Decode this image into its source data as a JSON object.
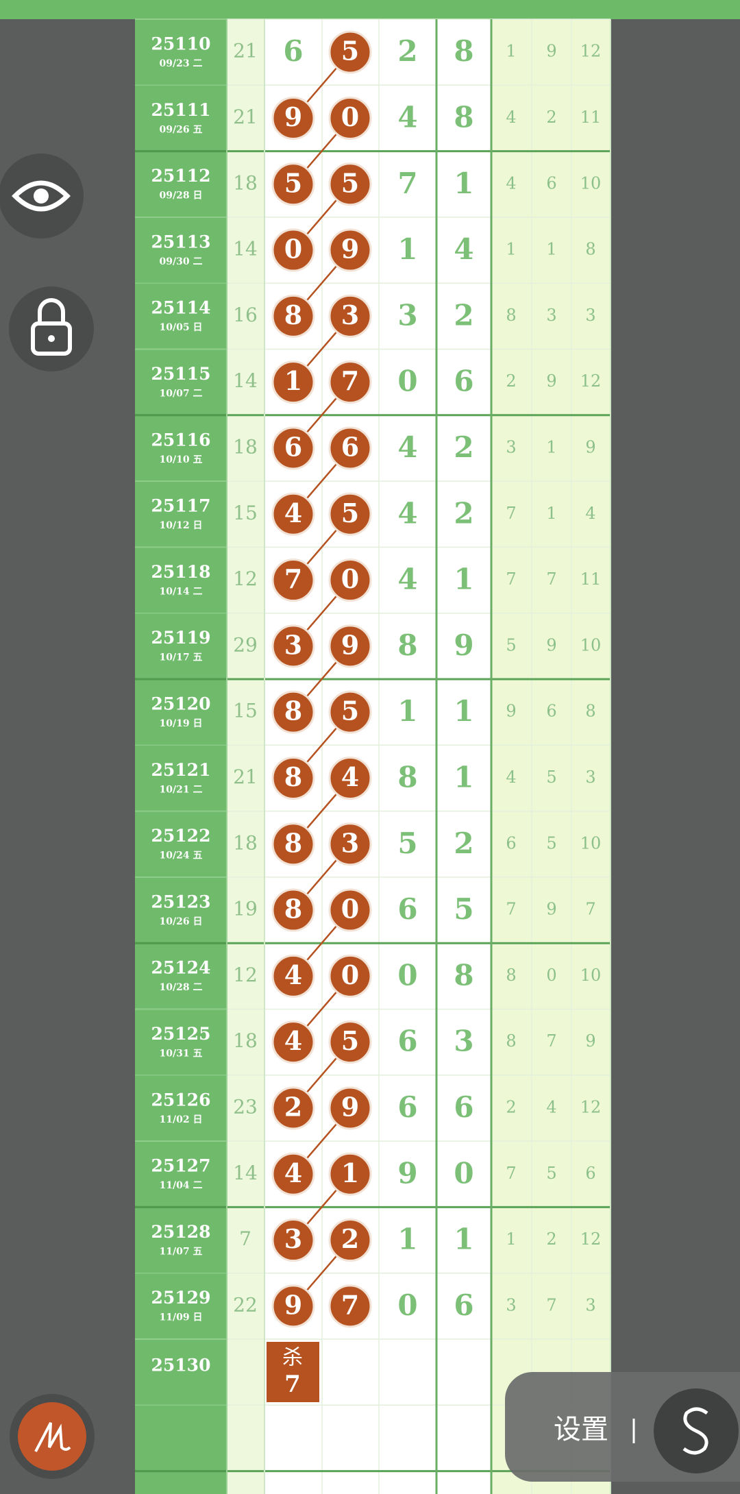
{
  "rows": [
    {
      "issue": "25110",
      "date": "09/23 二",
      "sum": 21,
      "digits": [
        6,
        5,
        2,
        8
      ],
      "right": [
        1,
        9,
        12
      ],
      "circled": [
        1
      ]
    },
    {
      "issue": "25111",
      "date": "09/26 五",
      "sum": 21,
      "digits": [
        9,
        0,
        4,
        8
      ],
      "right": [
        4,
        2,
        11
      ],
      "circled": [
        0,
        1
      ]
    },
    {
      "issue": "25112",
      "date": "09/28 日",
      "sum": 18,
      "digits": [
        5,
        5,
        7,
        1
      ],
      "right": [
        4,
        6,
        10
      ],
      "circled": [
        0,
        1
      ]
    },
    {
      "issue": "25113",
      "date": "09/30 二",
      "sum": 14,
      "digits": [
        0,
        9,
        1,
        4
      ],
      "right": [
        1,
        1,
        8
      ],
      "circled": [
        0,
        1
      ]
    },
    {
      "issue": "25114",
      "date": "10/05 日",
      "sum": 16,
      "digits": [
        8,
        3,
        3,
        2
      ],
      "right": [
        8,
        3,
        3
      ],
      "circled": [
        0,
        1
      ]
    },
    {
      "issue": "25115",
      "date": "10/07 二",
      "sum": 14,
      "digits": [
        1,
        7,
        0,
        6
      ],
      "right": [
        2,
        9,
        12
      ],
      "circled": [
        0,
        1
      ]
    },
    {
      "issue": "25116",
      "date": "10/10 五",
      "sum": 18,
      "digits": [
        6,
        6,
        4,
        2
      ],
      "right": [
        3,
        1,
        9
      ],
      "circled": [
        0,
        1
      ]
    },
    {
      "issue": "25117",
      "date": "10/12 日",
      "sum": 15,
      "digits": [
        4,
        5,
        4,
        2
      ],
      "right": [
        7,
        1,
        4
      ],
      "circled": [
        0,
        1
      ]
    },
    {
      "issue": "25118",
      "date": "10/14 二",
      "sum": 12,
      "digits": [
        7,
        0,
        4,
        1
      ],
      "right": [
        7,
        7,
        11
      ],
      "circled": [
        0,
        1
      ]
    },
    {
      "issue": "25119",
      "date": "10/17 五",
      "sum": 29,
      "digits": [
        3,
        9,
        8,
        9
      ],
      "right": [
        5,
        9,
        10
      ],
      "circled": [
        0,
        1
      ]
    },
    {
      "issue": "25120",
      "date": "10/19 日",
      "sum": 15,
      "digits": [
        8,
        5,
        1,
        1
      ],
      "right": [
        9,
        6,
        8
      ],
      "circled": [
        0,
        1
      ]
    },
    {
      "issue": "25121",
      "date": "10/21 二",
      "sum": 21,
      "digits": [
        8,
        4,
        8,
        1
      ],
      "right": [
        4,
        5,
        3
      ],
      "circled": [
        0,
        1
      ]
    },
    {
      "issue": "25122",
      "date": "10/24 五",
      "sum": 18,
      "digits": [
        8,
        3,
        5,
        2
      ],
      "right": [
        6,
        5,
        10
      ],
      "circled": [
        0,
        1
      ]
    },
    {
      "issue": "25123",
      "date": "10/26 日",
      "sum": 19,
      "digits": [
        8,
        0,
        6,
        5
      ],
      "right": [
        7,
        9,
        7
      ],
      "circled": [
        0,
        1
      ]
    },
    {
      "issue": "25124",
      "date": "10/28 二",
      "sum": 12,
      "digits": [
        4,
        0,
        0,
        8
      ],
      "right": [
        8,
        0,
        10
      ],
      "circled": [
        0,
        1
      ]
    },
    {
      "issue": "25125",
      "date": "10/31 五",
      "sum": 18,
      "digits": [
        4,
        5,
        6,
        3
      ],
      "right": [
        8,
        7,
        9
      ],
      "circled": [
        0,
        1
      ]
    },
    {
      "issue": "25126",
      "date": "11/02 日",
      "sum": 23,
      "digits": [
        2,
        9,
        6,
        6
      ],
      "right": [
        2,
        4,
        12
      ],
      "circled": [
        0,
        1
      ]
    },
    {
      "issue": "25127",
      "date": "11/04 二",
      "sum": 14,
      "digits": [
        4,
        1,
        9,
        0
      ],
      "right": [
        7,
        5,
        6
      ],
      "circled": [
        0,
        1
      ]
    },
    {
      "issue": "25128",
      "date": "11/07 五",
      "sum": 7,
      "digits": [
        3,
        2,
        1,
        1
      ],
      "right": [
        1,
        2,
        12
      ],
      "circled": [
        0,
        1
      ]
    },
    {
      "issue": "25129",
      "date": "11/09 日",
      "sum": 22,
      "digits": [
        9,
        7,
        0,
        6
      ],
      "right": [
        3,
        7,
        3
      ],
      "circled": [
        0,
        1
      ]
    }
  ],
  "next": {
    "issue": "25130",
    "kill_label": "杀",
    "kill_value": 7
  },
  "settings_label": "设置"
}
